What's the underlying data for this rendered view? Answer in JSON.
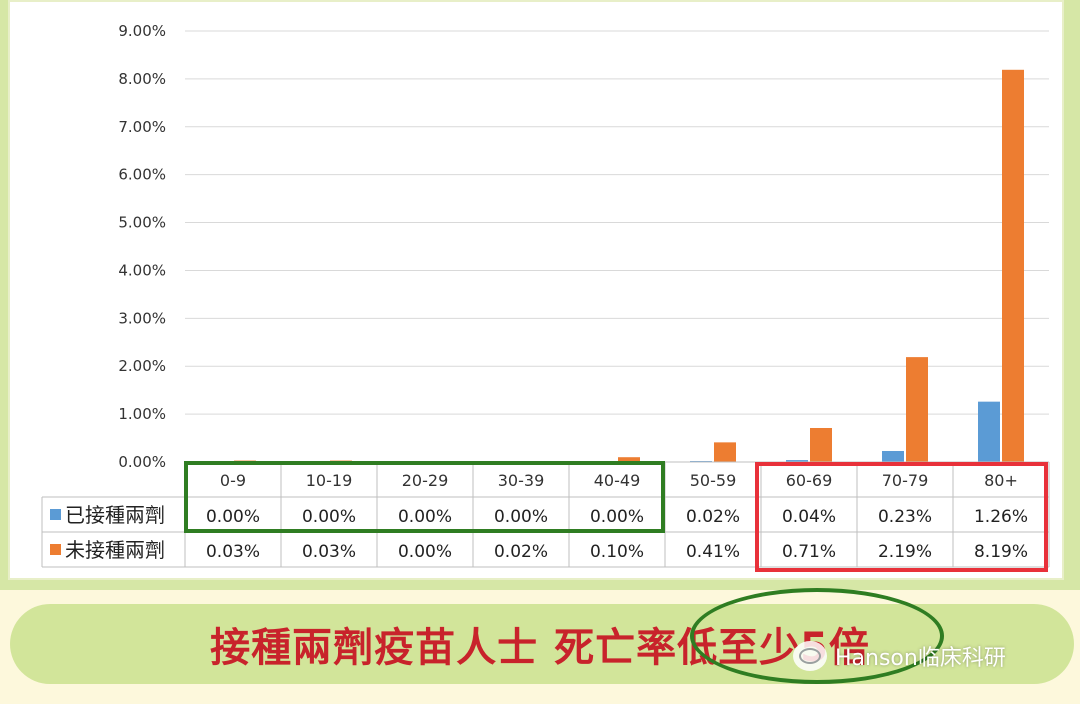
{
  "chart_data": {
    "type": "bar",
    "categories": [
      "0-9",
      "10-19",
      "20-29",
      "30-39",
      "40-49",
      "50-59",
      "60-69",
      "70-79",
      "80+"
    ],
    "series": [
      {
        "name": "已接種兩劑",
        "values": [
          0.0,
          0.0,
          0.0,
          0.0,
          0.0,
          0.02,
          0.04,
          0.23,
          1.26
        ],
        "labels": [
          "0.00%",
          "0.00%",
          "0.00%",
          "0.00%",
          "0.00%",
          "0.02%",
          "0.04%",
          "0.23%",
          "1.26%"
        ],
        "color": "#5b9bd5"
      },
      {
        "name": "未接種兩劑",
        "values": [
          0.03,
          0.03,
          0.0,
          0.02,
          0.1,
          0.41,
          0.71,
          2.19,
          8.19
        ],
        "labels": [
          "0.03%",
          "0.03%",
          "0.00%",
          "0.02%",
          "0.10%",
          "0.41%",
          "0.71%",
          "2.19%",
          "8.19%"
        ],
        "color": "#ed7d31"
      }
    ],
    "yticks": [
      "0.00%",
      "1.00%",
      "2.00%",
      "3.00%",
      "4.00%",
      "5.00%",
      "6.00%",
      "7.00%",
      "8.00%",
      "9.00%"
    ],
    "ylim": [
      0,
      9
    ],
    "grid": true,
    "data_table": true
  },
  "banner": {
    "headline_part1": "接種兩劑疫苗人士",
    "headline_part2": "死亡率低至少5倍"
  },
  "watermark": {
    "text": "Hanson临床科研"
  },
  "colors": {
    "panel_green": "#d6e7a6",
    "highlight_green": "#2f7d22",
    "highlight_red": "#e8313a",
    "headline_red": "#c8232b"
  }
}
